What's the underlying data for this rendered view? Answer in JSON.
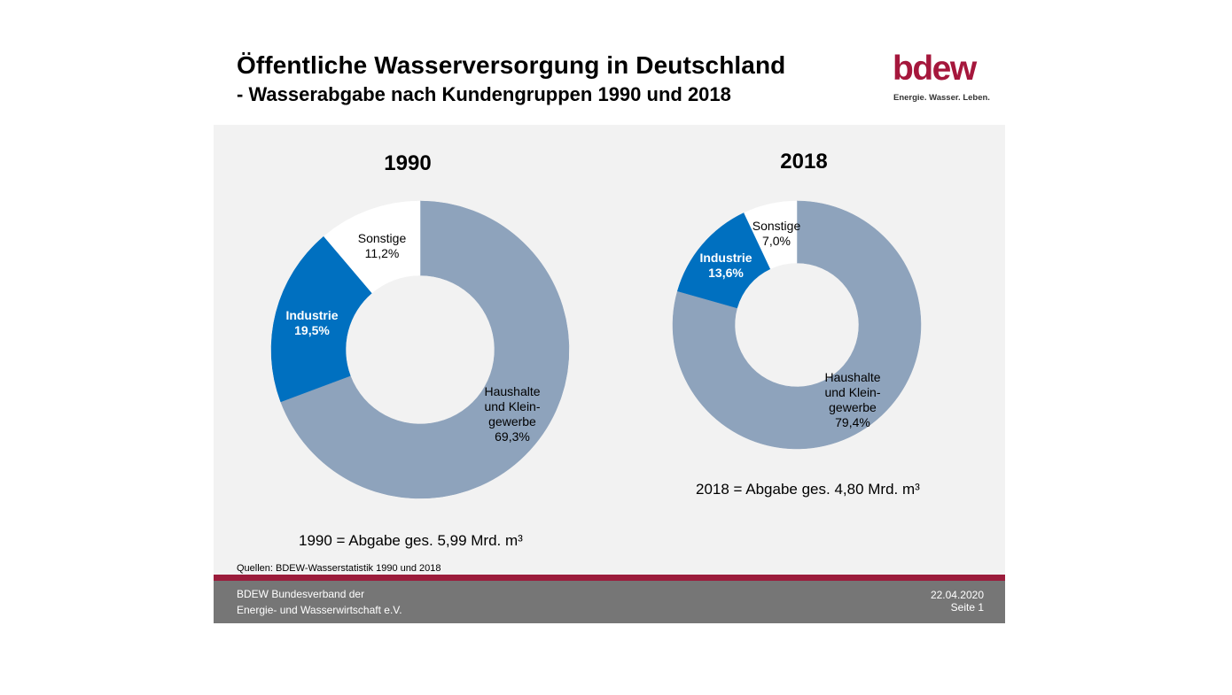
{
  "header": {
    "title": "Öffentliche Wasserversorgung in Deutschland",
    "subtitle": "- Wasserabgabe nach Kundengruppen 1990 und 2018"
  },
  "logo": {
    "word": "bdew",
    "tagline": "Energie. Wasser. Leben.",
    "color": "#a5173c"
  },
  "colors": {
    "haushalte": "#8ea3bc",
    "industrie": "#0070c0",
    "sonstige": "#ffffff",
    "panel": "#f2f2f2",
    "accent_bar": "#9b1c3b",
    "footer": "#767676"
  },
  "chart_data": [
    {
      "type": "pie",
      "title": "1990",
      "total_label": "1990 = Abgabe ges. 5,99 Mrd. m³",
      "slices": [
        {
          "key": "haushalte",
          "label": "Haushalte und Klein-gewerbe",
          "lines": [
            "Haushalte",
            "und Klein-",
            "gewerbe"
          ],
          "value": 69.3,
          "value_label": "69,3%"
        },
        {
          "key": "industrie",
          "label": "Industrie",
          "lines": [
            "Industrie"
          ],
          "value": 19.5,
          "value_label": "19,5%"
        },
        {
          "key": "sonstige",
          "label": "Sonstige",
          "lines": [
            "Sonstige"
          ],
          "value": 11.2,
          "value_label": "11,2%"
        }
      ]
    },
    {
      "type": "pie",
      "title": "2018",
      "total_label": "2018 = Abgabe ges. 4,80 Mrd. m³",
      "slices": [
        {
          "key": "haushalte",
          "label": "Haushalte und Klein-gewerbe",
          "lines": [
            "Haushalte",
            "und Klein-",
            "gewerbe"
          ],
          "value": 79.4,
          "value_label": "79,4%"
        },
        {
          "key": "industrie",
          "label": "Industrie",
          "lines": [
            "Industrie"
          ],
          "value": 13.6,
          "value_label": "13,6%"
        },
        {
          "key": "sonstige",
          "label": "Sonstige",
          "lines": [
            "Sonstige"
          ],
          "value": 7.0,
          "value_label": "7,0%"
        }
      ]
    }
  ],
  "source": "Quellen: BDEW-Wasserstatistik 1990 und 2018",
  "footer": {
    "org_line1": "BDEW Bundesverband der",
    "org_line2": "Energie- und Wasserwirtschaft e.V.",
    "date": "22.04.2020",
    "page": "Seite 1"
  }
}
